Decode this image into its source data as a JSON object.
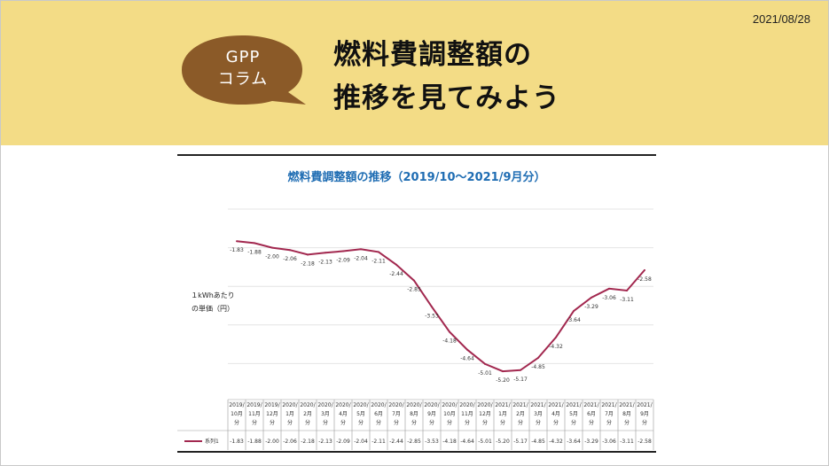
{
  "date": "2021/08/28",
  "badge": {
    "line1": "GPP",
    "line2": "コラム"
  },
  "title": {
    "line1": "燃料費調整額の",
    "line2": "推移を見てみよう"
  },
  "colors": {
    "header_bg": "#f3dc86",
    "badge_bg": "#8b5a28",
    "line": "#a2284f",
    "chart_title": "#1f6db3"
  },
  "chart_data": {
    "type": "line",
    "title": "燃料費調整額の推移（2019/10〜2021/9月分）",
    "ylabel_line1": "１kWhあたり",
    "ylabel_line2": "の単価（円）",
    "ylim": [
      -6,
      -1
    ],
    "grid": true,
    "categories_line1": [
      "2019/",
      "2019/",
      "2019/",
      "2020/",
      "2020/",
      "2020/",
      "2020/",
      "2020/",
      "2020/",
      "2020/",
      "2020/",
      "2020/",
      "2020/",
      "2020/",
      "2020/",
      "2021/",
      "2021/",
      "2021/",
      "2021/",
      "2021/",
      "2021/",
      "2021/",
      "2021/",
      "2021/"
    ],
    "categories_line2": [
      "10月",
      "11月",
      "12月",
      "1月",
      "2月",
      "3月",
      "4月",
      "5月",
      "6月",
      "7月",
      "8月",
      "9月",
      "10月",
      "11月",
      "12月",
      "1月",
      "2月",
      "3月",
      "4月",
      "5月",
      "6月",
      "7月",
      "8月",
      "9月"
    ],
    "categories_line3": [
      "分",
      "分",
      "分",
      "分",
      "分",
      "分",
      "分",
      "分",
      "分",
      "分",
      "分",
      "分",
      "分",
      "分",
      "分",
      "分",
      "分",
      "分",
      "分",
      "分",
      "分",
      "分",
      "分",
      "分"
    ],
    "series": [
      {
        "name": "系列1",
        "values": [
          -1.83,
          -1.88,
          -2.0,
          -2.06,
          -2.18,
          -2.13,
          -2.09,
          -2.04,
          -2.11,
          -2.44,
          -2.85,
          -3.53,
          -4.18,
          -4.64,
          -5.01,
          -5.2,
          -5.17,
          -4.85,
          -4.32,
          -3.64,
          -3.29,
          -3.06,
          -3.11,
          -2.58
        ],
        "labels": [
          "-1.83",
          "-1.88",
          "-2.00",
          "-2.06",
          "-2.18",
          "-2.13",
          "-2.09",
          "-2.04",
          "-2.11",
          "-2.44",
          "-2.85",
          "-3.53",
          "-4.18",
          "-4.64",
          "-5.01",
          "-5.20",
          "-5.17",
          "-4.85",
          "-4.32",
          "-3.64",
          "-3.29",
          "-3.06",
          "-3.11",
          "-2.58"
        ]
      }
    ]
  }
}
